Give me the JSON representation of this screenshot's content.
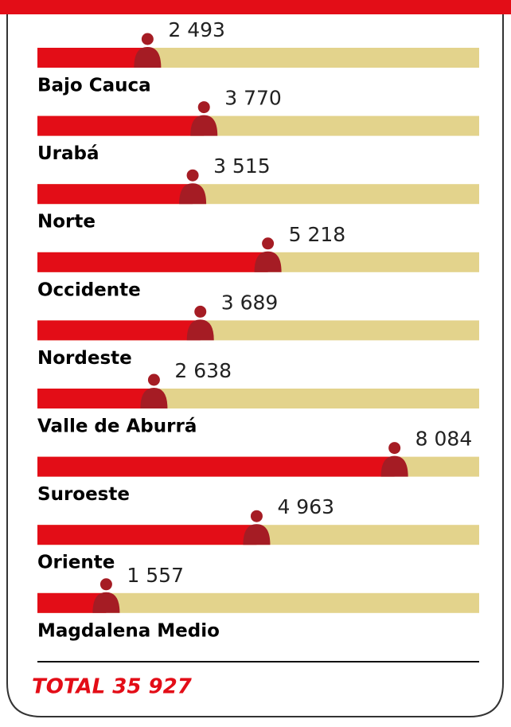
{
  "chart_data": {
    "type": "bar",
    "categories": [
      "Bajo Cauca",
      "Urabá",
      "Norte",
      "Occidente",
      "Nordeste",
      "Valle de Aburrá",
      "Suroeste",
      "Oriente",
      "Magdalena Medio"
    ],
    "values": [
      2493,
      3770,
      3515,
      5218,
      3689,
      2638,
      8084,
      4963,
      1557
    ],
    "value_labels": [
      "2 493",
      "3 770",
      "3 515",
      "5 218",
      "3 689",
      "2 638",
      "8 084",
      "4 963",
      "1 557"
    ],
    "color": "#e30d17",
    "xlim": [
      0,
      10000
    ],
    "total": "TOTAL 35 927"
  }
}
